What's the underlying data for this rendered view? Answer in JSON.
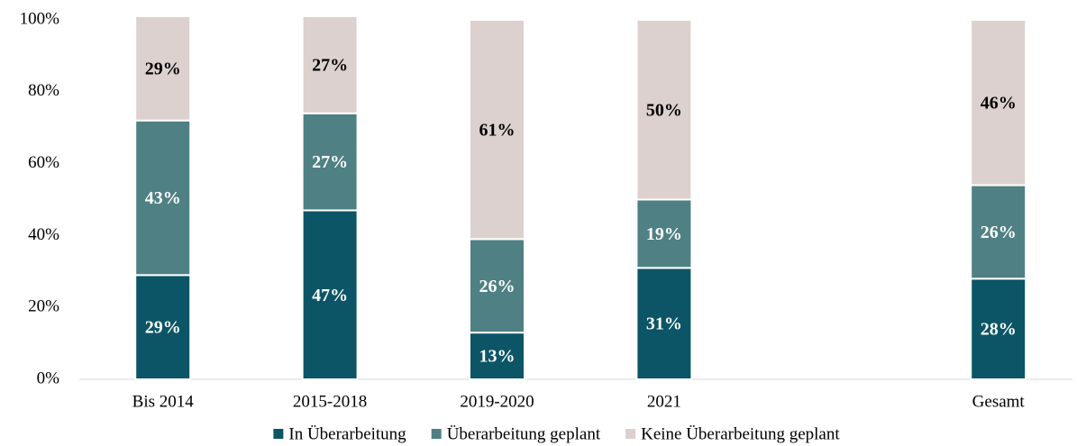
{
  "chart_data": {
    "type": "stacked_bar",
    "categories": [
      "Bis 2014",
      "2015-2018",
      "2019-2020",
      "2021",
      null,
      "Gesamt"
    ],
    "series": [
      {
        "name": "In Überarbeitung",
        "color": "#0b5566",
        "label_color": "#ffffff",
        "values": [
          29,
          47,
          13,
          31,
          null,
          28
        ],
        "value_labels": [
          "29%",
          "47%",
          "13%",
          "31%",
          null,
          "28%"
        ]
      },
      {
        "name": "Überarbeitung geplant",
        "color": "#4f8083",
        "label_color": "#ffffff",
        "values": [
          43,
          27,
          26,
          19,
          null,
          26
        ],
        "value_labels": [
          "43%",
          "27%",
          "26%",
          "19%",
          null,
          "26%"
        ]
      },
      {
        "name": "Keine Überarbeitung geplant",
        "color": "#dcd1ce",
        "label_color": "#000000",
        "values": [
          29,
          27,
          61,
          50,
          null,
          46
        ],
        "value_labels": [
          "29%",
          "27%",
          "61%",
          "50%",
          null,
          "46%"
        ]
      }
    ],
    "ylim": [
      0,
      100
    ],
    "yticks": [
      {
        "value": 0,
        "label": "0%"
      },
      {
        "value": 20,
        "label": "20%"
      },
      {
        "value": 40,
        "label": "40%"
      },
      {
        "value": 60,
        "label": "60%"
      },
      {
        "value": 80,
        "label": "80%"
      },
      {
        "value": 100,
        "label": "100%"
      }
    ],
    "grid": false,
    "legend": "bottom"
  }
}
